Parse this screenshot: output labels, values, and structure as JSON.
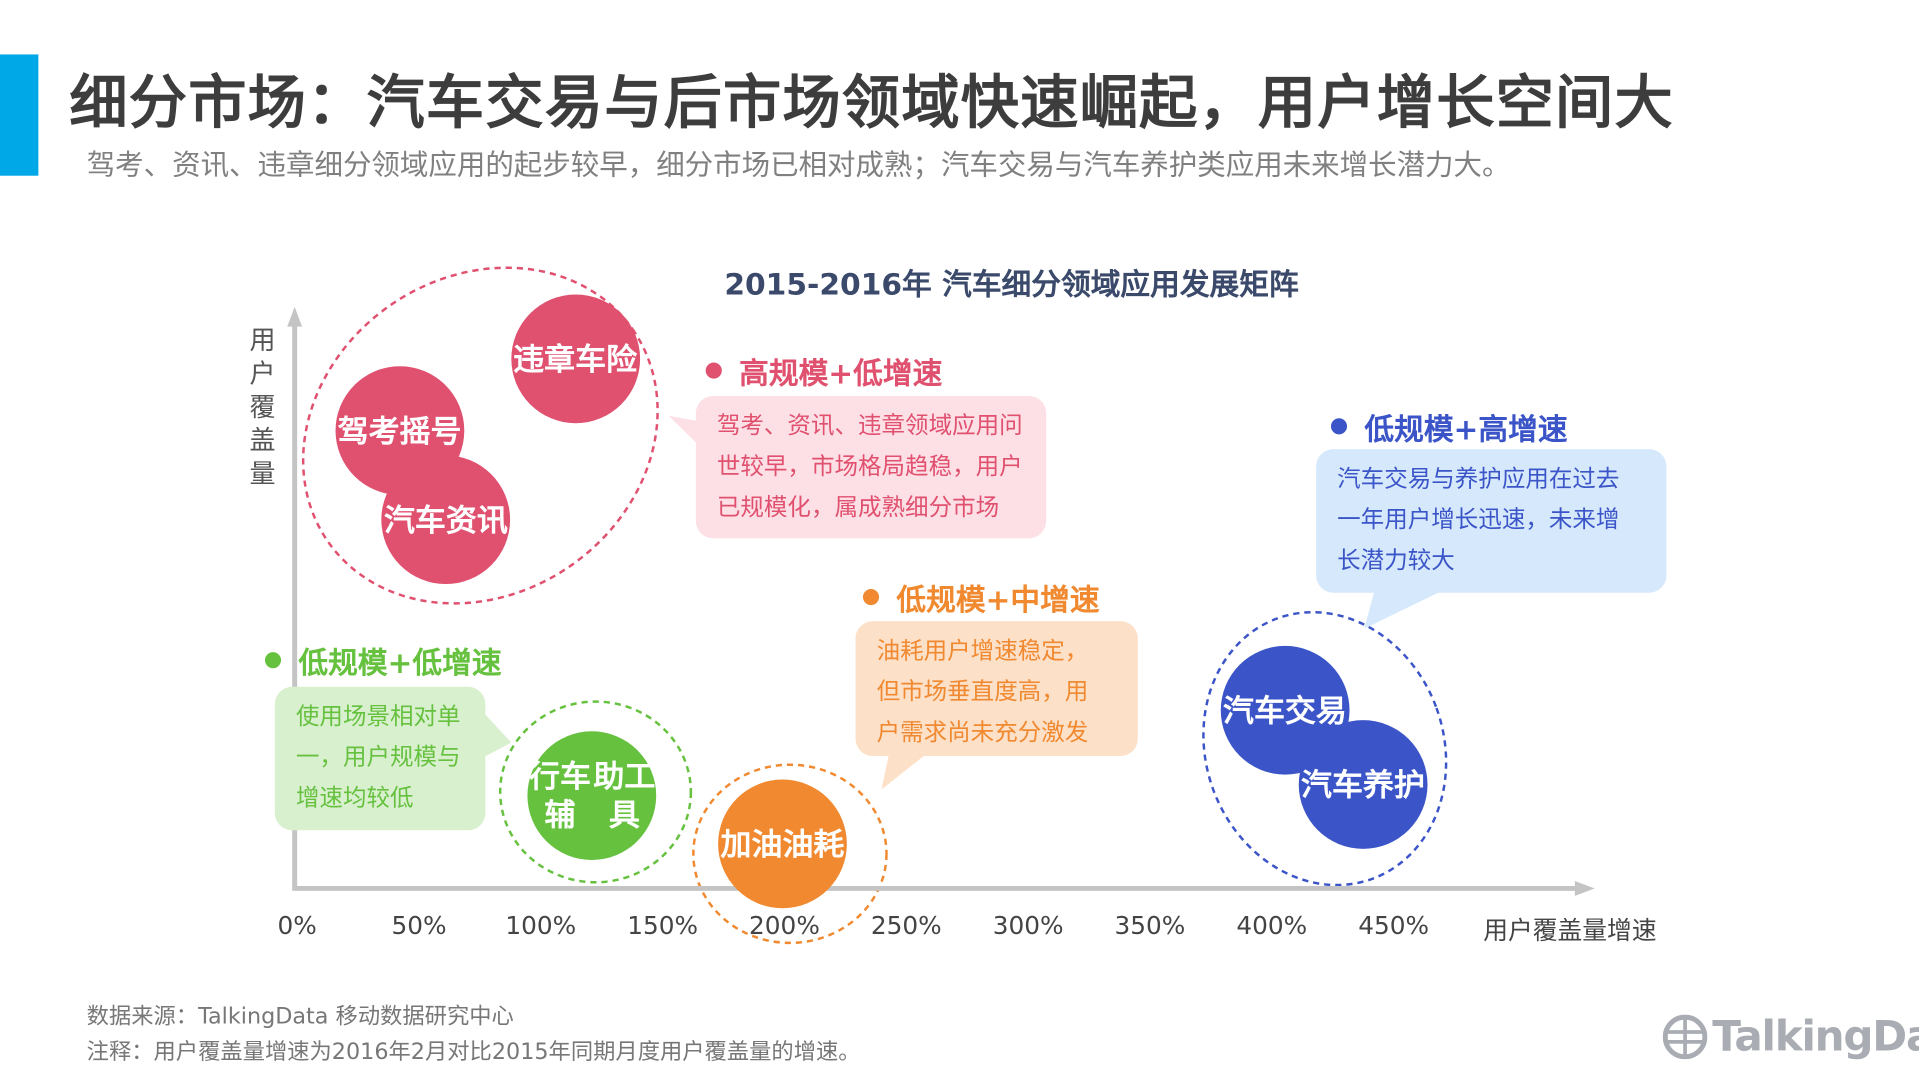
{
  "header": {
    "title": "细分市场：汽车交易与后市场领域快速崛起，用户增长空间大",
    "subtitle": "驾考、资讯、违章细分领域应用的起步较早，细分市场已相对成熟；汽车交易与汽车养护类应用未来增长潜力大。"
  },
  "colors": {
    "accent": "#00a8e8",
    "pink": "#e0506f",
    "green": "#66c13f",
    "orange": "#f0892f",
    "blue": "#3b55c8"
  },
  "chart_data": {
    "type": "scatter",
    "title": "2015-2016年 汽车细分领域应用发展矩阵",
    "xlabel": "用户覆盖量增速",
    "ylabel": "用户覆盖量",
    "x_ticks": [
      "0%",
      "50%",
      "100%",
      "150%",
      "200%",
      "250%",
      "300%",
      "350%",
      "400%",
      "450%"
    ],
    "xlim": [
      0,
      520
    ],
    "grid": false,
    "groups": [
      {
        "name": "高规模+低增速",
        "color": "#e0506f",
        "desc": [
          "驾考、资讯、违章领域应用问",
          "世较早，市场格局趋稳，用户",
          "已规模化，属成熟细分市场"
        ]
      },
      {
        "name": "低规模+高增速",
        "color": "#3b55c8",
        "desc": [
          "汽车交易与养护应用在过去",
          "一年用户增长迅速，未来增",
          "长潜力较大"
        ]
      },
      {
        "name": "低规模+中增速",
        "color": "#f0892f",
        "desc": [
          "油耗用户增速稳定，",
          "但市场垂直度高，用",
          "户需求尚未充分激发"
        ]
      },
      {
        "name": "低规模+低增速",
        "color": "#66c13f",
        "desc": [
          "使用场景相对单",
          "一，用户规模与",
          "增速均较低"
        ]
      }
    ],
    "points": [
      {
        "lines": [
          "违章",
          "车险"
        ],
        "group": 0,
        "x": 115
      },
      {
        "lines": [
          "驾考",
          "摇号"
        ],
        "group": 0,
        "x": 43
      },
      {
        "lines": [
          "汽车",
          "资讯"
        ],
        "group": 0,
        "x": 62
      },
      {
        "lines": [
          "行车辅",
          "助工具"
        ],
        "group": 3,
        "x": 122
      },
      {
        "lines": [
          "加油",
          "油耗"
        ],
        "group": 2,
        "x": 200
      },
      {
        "lines": [
          "汽车",
          "交易"
        ],
        "group": 1,
        "x": 406
      },
      {
        "lines": [
          "汽车",
          "养护"
        ],
        "group": 1,
        "x": 438
      }
    ]
  },
  "footer": {
    "source": "数据来源：TalkingData 移动数据研究中心",
    "note": "注释：用户覆盖量增速为2016年2月对比2015年同期月度用户覆盖量的增速。",
    "logo": "TalkingData"
  }
}
